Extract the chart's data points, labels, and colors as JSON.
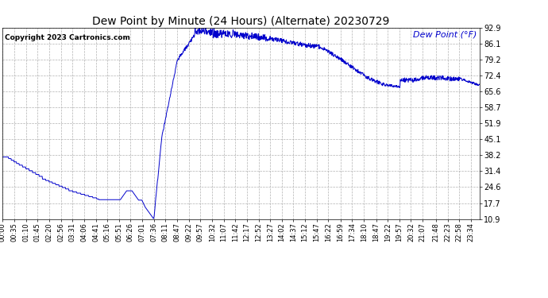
{
  "title": "Dew Point by Minute (24 Hours) (Alternate) 20230729",
  "copyright_text": "Copyright 2023 Cartronics.com",
  "legend_label": "Dew Point (°F)",
  "line_color": "#0000CC",
  "legend_color": "#0000CC",
  "background_color": "#ffffff",
  "grid_color": "#aaaaaa",
  "yticks": [
    10.9,
    17.7,
    24.6,
    31.4,
    38.2,
    45.1,
    51.9,
    58.7,
    65.6,
    72.4,
    79.2,
    86.1,
    92.9
  ],
  "ymin": 10.9,
  "ymax": 92.9,
  "xtick_labels": [
    "00:00",
    "00:35",
    "01:10",
    "01:45",
    "02:20",
    "02:56",
    "03:31",
    "04:06",
    "04:41",
    "05:16",
    "05:51",
    "06:26",
    "07:01",
    "07:36",
    "08:11",
    "08:47",
    "09:22",
    "09:57",
    "10:32",
    "11:07",
    "11:42",
    "12:17",
    "12:52",
    "13:27",
    "14:02",
    "14:37",
    "15:12",
    "15:47",
    "16:22",
    "16:59",
    "17:34",
    "18:10",
    "18:47",
    "19:22",
    "19:57",
    "20:32",
    "21:07",
    "21:48",
    "22:23",
    "22:58",
    "23:34"
  ],
  "title_fontsize": 10,
  "copyright_fontsize": 6.5,
  "legend_fontsize": 8,
  "ytick_fontsize": 7,
  "xtick_fontsize": 6
}
